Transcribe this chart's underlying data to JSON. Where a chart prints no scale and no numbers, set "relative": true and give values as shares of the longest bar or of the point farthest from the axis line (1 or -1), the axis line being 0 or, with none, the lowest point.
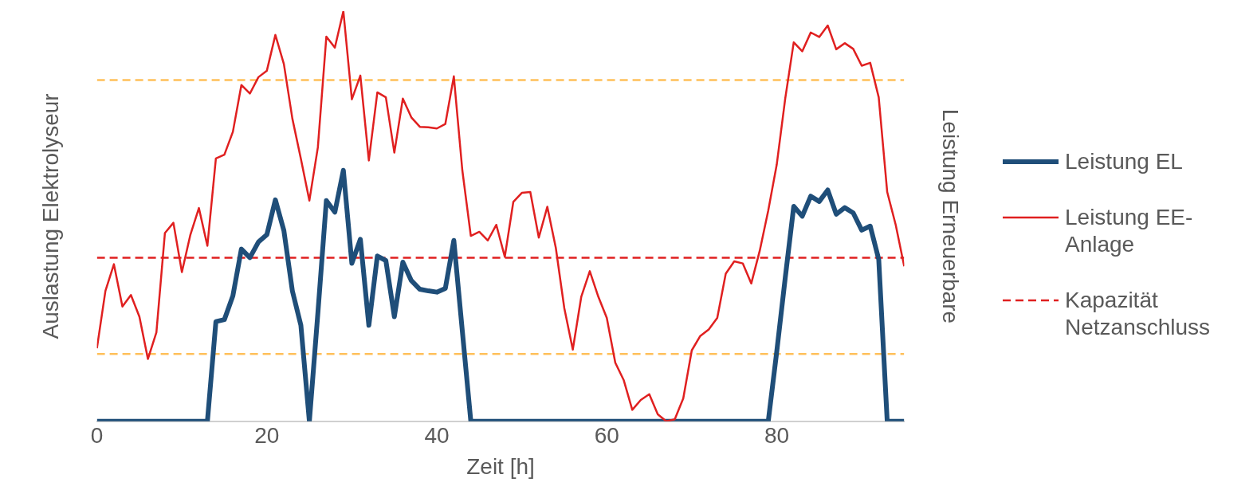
{
  "chart_data": {
    "type": "line",
    "relative": true,
    "xlabel": "Zeit [h]",
    "ylabel": "Auslastung Elektrolyseur",
    "y2label": "Leistung Erneuerbare",
    "x": [
      0,
      1,
      2,
      3,
      4,
      5,
      6,
      7,
      8,
      9,
      10,
      11,
      12,
      13,
      14,
      15,
      16,
      17,
      18,
      19,
      20,
      21,
      22,
      23,
      24,
      25,
      26,
      27,
      28,
      29,
      30,
      31,
      32,
      33,
      34,
      35,
      36,
      37,
      38,
      39,
      40,
      41,
      42,
      43,
      44,
      45,
      46,
      47,
      48,
      49,
      50,
      51,
      52,
      53,
      54,
      55,
      56,
      57,
      58,
      59,
      60,
      61,
      62,
      63,
      64,
      65,
      66,
      67,
      68,
      69,
      70,
      71,
      72,
      73,
      74,
      75,
      76,
      77,
      78,
      79,
      80,
      81,
      82,
      83,
      84,
      85,
      86,
      87,
      88,
      89,
      90,
      91,
      92,
      93,
      94,
      95
    ],
    "xlim": [
      0,
      95
    ],
    "xticks": [
      0,
      20,
      40,
      60,
      80
    ],
    "grid": false,
    "legend": "right",
    "marker": "none",
    "series": [
      {
        "name": "Leistung EL",
        "color": "#1f4e79",
        "values": [
          0,
          0,
          0,
          0,
          0,
          0,
          0,
          0,
          0,
          0,
          0,
          0,
          0,
          0,
          0.243,
          0.248,
          0.306,
          0.42,
          0.399,
          0.437,
          0.455,
          0.54,
          0.465,
          0.318,
          0.234,
          0,
          0.264,
          0.538,
          0.51,
          0.612,
          0.385,
          0.444,
          0.234,
          0.403,
          0.392,
          0.255,
          0.388,
          0.343,
          0.322,
          0.318,
          0.315,
          0.324,
          0.441,
          0.22,
          0,
          0,
          0,
          0,
          0,
          0,
          0,
          0,
          0,
          0,
          0,
          0,
          0,
          0,
          0,
          0,
          0,
          0,
          0,
          0,
          0,
          0,
          0,
          0,
          0,
          0,
          0,
          0,
          0,
          0,
          0,
          0,
          0,
          0,
          0,
          0,
          0.17,
          0.35,
          0.524,
          0.5,
          0.549,
          0.536,
          0.564,
          0.505,
          0.521,
          0.508,
          0.466,
          0.476,
          0.395,
          0,
          0,
          0
        ]
      },
      {
        "name": "Leistung EE-Anlage",
        "color": "#e02020",
        "values": [
          0.178,
          0.318,
          0.383,
          0.28,
          0.308,
          0.255,
          0.152,
          0.217,
          0.459,
          0.484,
          0.364,
          0.455,
          0.52,
          0.428,
          0.641,
          0.65,
          0.706,
          0.82,
          0.799,
          0.839,
          0.855,
          0.942,
          0.871,
          0.738,
          0.64,
          0.538,
          0.668,
          0.938,
          0.911,
          1,
          0.785,
          0.843,
          0.636,
          0.802,
          0.79,
          0.655,
          0.787,
          0.741,
          0.718,
          0.717,
          0.714,
          0.725,
          0.841,
          0.612,
          0.452,
          0.462,
          0.441,
          0.479,
          0.401,
          0.535,
          0.557,
          0.559,
          0.448,
          0.523,
          0.423,
          0.276,
          0.175,
          0.304,
          0.366,
          0.304,
          0.252,
          0.143,
          0.1,
          0.028,
          0.052,
          0.066,
          0.017,
          0,
          0.005,
          0.056,
          0.173,
          0.208,
          0.224,
          0.252,
          0.36,
          0.39,
          0.385,
          0.336,
          0.416,
          0.514,
          0.626,
          0.787,
          0.924,
          0.902,
          0.948,
          0.937,
          0.965,
          0.907,
          0.922,
          0.908,
          0.867,
          0.874,
          0.79,
          0.559,
          0.479,
          0.378
        ]
      }
    ],
    "ref_lines": [
      {
        "axis": "y",
        "value": 0.399,
        "label": "Kapazität Netzanschluss",
        "color": "#e02020",
        "line_style": "dashed"
      },
      {
        "axis": "y",
        "value": 0.832,
        "color": "#ffc05a",
        "line_style": "dashed"
      },
      {
        "axis": "y",
        "value": 0.164,
        "color": "#ffc05a",
        "line_style": "dashed"
      }
    ]
  }
}
